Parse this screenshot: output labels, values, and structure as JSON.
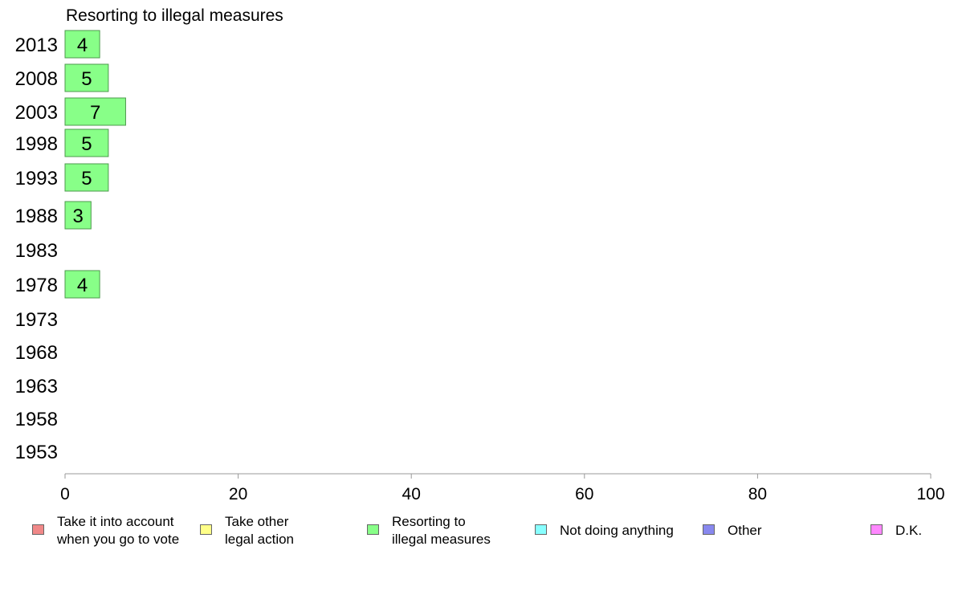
{
  "chart_data": {
    "type": "bar",
    "orientation": "horizontal",
    "title": "Resorting to illegal measures",
    "categories": [
      "2013",
      "2008",
      "2003",
      "1998",
      "1993",
      "1988",
      "1983",
      "1978",
      "1973",
      "1968",
      "1963",
      "1958",
      "1953"
    ],
    "values": [
      4,
      5,
      7,
      5,
      5,
      3,
      null,
      4,
      null,
      null,
      null,
      null,
      null
    ],
    "xlim": [
      0,
      100
    ],
    "xticks": [
      0,
      20,
      40,
      60,
      80,
      100
    ],
    "xlabel": "",
    "ylabel": "",
    "bar_color": "#88ff88",
    "bar_border": "#4d994d",
    "grid": false,
    "legend_position": "bottom",
    "legend": [
      {
        "label": "Take it into account\nwhen you go to vote",
        "color": "#f08888"
      },
      {
        "label": "Take other\nlegal action",
        "color": "#ffff88"
      },
      {
        "label": "Resorting to\nillegal measures",
        "color": "#88ff88"
      },
      {
        "label": "Not doing anything",
        "color": "#88ffff"
      },
      {
        "label": "Other",
        "color": "#8888ee"
      },
      {
        "label": "D.K.",
        "color": "#ff88ff"
      }
    ]
  }
}
